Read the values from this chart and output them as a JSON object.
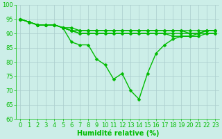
{
  "background_color": "#cceee8",
  "grid_color": "#aacccc",
  "line_color": "#00bb00",
  "xlabel": "Humidité relative (%)",
  "xlim": [
    -0.5,
    23.5
  ],
  "ylim": [
    60,
    100
  ],
  "yticks": [
    60,
    65,
    70,
    75,
    80,
    85,
    90,
    95,
    100
  ],
  "xticks": [
    0,
    1,
    2,
    3,
    4,
    5,
    6,
    7,
    8,
    9,
    10,
    11,
    12,
    13,
    14,
    15,
    16,
    17,
    18,
    19,
    20,
    21,
    22,
    23
  ],
  "lines": [
    [
      95,
      94,
      93,
      93,
      93,
      92,
      92,
      91,
      91,
      91,
      91,
      91,
      91,
      91,
      91,
      91,
      91,
      91,
      91,
      91,
      91,
      91,
      91,
      91
    ],
    [
      95,
      94,
      93,
      93,
      93,
      92,
      91,
      91,
      91,
      91,
      91,
      91,
      91,
      91,
      91,
      91,
      91,
      91,
      91,
      91,
      90,
      90,
      91,
      91
    ],
    [
      95,
      94,
      93,
      93,
      93,
      92,
      91,
      90,
      90,
      90,
      90,
      90,
      90,
      90,
      90,
      90,
      90,
      90,
      90,
      90,
      90,
      90,
      90,
      90
    ],
    [
      95,
      94,
      93,
      93,
      93,
      92,
      91,
      90,
      90,
      90,
      90,
      90,
      90,
      90,
      90,
      90,
      90,
      90,
      89,
      89,
      89,
      89,
      90,
      90
    ],
    [
      95,
      94,
      93,
      93,
      93,
      92,
      87,
      86,
      86,
      81,
      79,
      74,
      76,
      70,
      67,
      76,
      83,
      86,
      88,
      89,
      89,
      90,
      91,
      91
    ]
  ],
  "marker_size": 2.5,
  "line_width": 1.0,
  "xlabel_fontsize": 7,
  "tick_fontsize": 6,
  "figsize": [
    3.2,
    2.0
  ],
  "dpi": 100
}
